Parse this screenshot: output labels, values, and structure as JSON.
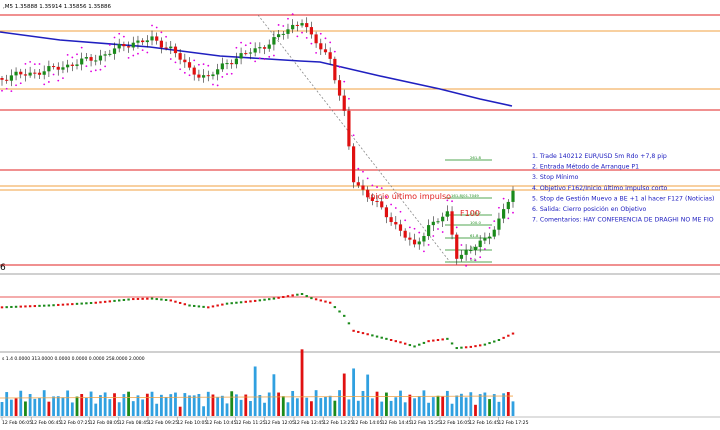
{
  "header": {
    "symbol_info": ",M5  1.35888 1.35914 1.35856 1.35886",
    "indicator_label": "6",
    "volume_info": "s 1.4  0.0000  313.0000  0.0000  0.0000  0.0000  258.0000  2.0000"
  },
  "notes": [
    "1. Trade 140212 EUR/USD 5m Rdo +7,8 pip",
    "2. Entrada Método de Arranque P1",
    "3. Stop Mínimo",
    "4. Objetivo F162/Inicio último impulso corto",
    "5. Stop de Gestión Muevo a BE +1 al hacer F127 (Noticias)",
    "6. Salida: Cierro posición en Objetivo",
    "7. Comentarios: HAY CONFERENCIA DE DRAGHI NO ME FIO"
  ],
  "annotations": {
    "impulse_label": "Inicio último impulso",
    "fibo_f100": "F100"
  },
  "fibo_levels": [
    "261.8",
    "161.8|01.7049",
    "138.2",
    "100.0",
    "61.8",
    "38.2",
    "0.0"
  ],
  "time_axis": [
    "12 Feb 06:05",
    "12 Feb 06:45",
    "12 Feb 07:25",
    "12 Feb 08:05",
    "12 Feb 08:45",
    "12 Feb 09:25",
    "12 Feb 10:05",
    "12 Feb 10:45",
    "12 Feb 11:25",
    "12 Feb 12:05",
    "12 Feb 12:45",
    "12 Feb 13:25",
    "12 Feb 14:05",
    "12 Feb 14:45",
    "12 Feb 15:25",
    "12 Feb 16:05",
    "12 Feb 16:45",
    "12 Feb 17:25"
  ],
  "colors": {
    "bull": "#1a8a1a",
    "bear": "#e01010",
    "sar": "#e000e0",
    "ma": "#2020c0",
    "red_line": "#e02020",
    "orange_line": "#f0a040",
    "notes_text": "#2020c0",
    "volume": "#30a0e0"
  }
}
